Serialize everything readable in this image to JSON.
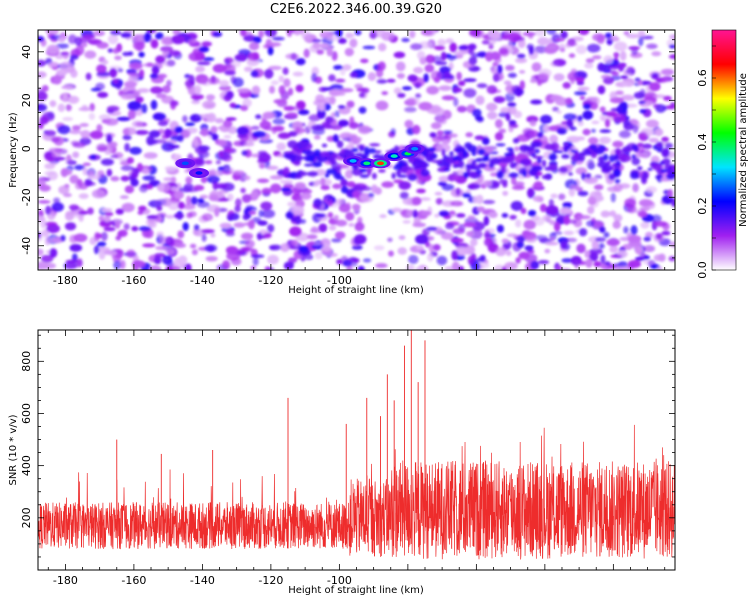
{
  "figure": {
    "title": "C2E6.2022.346.00.39.G20"
  },
  "chart_data": [
    {
      "type": "heatmap",
      "xlabel": "Height of straight line (km)",
      "ylabel": "Frequency (Hz)",
      "xlim": [
        -188,
        -2
      ],
      "ylim": [
        -50,
        49
      ],
      "xticks": [
        -180,
        -160,
        -140,
        -120,
        -100
      ],
      "yticks": [
        -40,
        -20,
        0,
        20,
        40
      ],
      "colorbar": {
        "label": "Normalized spectral amplitude",
        "range": [
          0.0,
          0.75
        ],
        "ticks": [
          "0.0",
          "0.2",
          "0.4",
          "0.6"
        ],
        "colors": [
          "#ffffff",
          "#a020f0",
          "#0000ff",
          "#00e5ff",
          "#00ff00",
          "#ffff00",
          "#ff0000",
          "#ff1493"
        ]
      },
      "features": [
        {
          "x": -145,
          "y": -6,
          "value": 0.25
        },
        {
          "x": -141,
          "y": -10,
          "value": 0.22
        },
        {
          "x": -96,
          "y": -5,
          "value": 0.3
        },
        {
          "x": -92,
          "y": -6,
          "value": 0.38
        },
        {
          "x": -88,
          "y": -6,
          "value": 0.62
        },
        {
          "x": -84,
          "y": -3,
          "value": 0.35
        },
        {
          "x": -80,
          "y": -2,
          "value": 0.4
        },
        {
          "x": -78,
          "y": 0,
          "value": 0.28
        }
      ]
    },
    {
      "type": "line",
      "xlabel": "Height of straight line (km)",
      "ylabel": "SNR (10 * v/v)",
      "xlim": [
        -188,
        -2
      ],
      "ylim": [
        0,
        920
      ],
      "xticks": [
        -180,
        -160,
        -140,
        -120,
        -100
      ],
      "yticks": [
        200,
        400,
        600,
        800
      ],
      "color": "#ee2c2c",
      "baseline_mean": 170,
      "spikes": [
        {
          "x": -165,
          "y": 500
        },
        {
          "x": -152,
          "y": 445
        },
        {
          "x": -137,
          "y": 460
        },
        {
          "x": -115,
          "y": 660
        },
        {
          "x": -98,
          "y": 560
        },
        {
          "x": -92,
          "y": 660
        },
        {
          "x": -88,
          "y": 590
        },
        {
          "x": -86,
          "y": 750
        },
        {
          "x": -84,
          "y": 650
        },
        {
          "x": -81,
          "y": 860
        },
        {
          "x": -79,
          "y": 920
        },
        {
          "x": -77,
          "y": 720
        },
        {
          "x": -75,
          "y": 880
        }
      ]
    }
  ]
}
